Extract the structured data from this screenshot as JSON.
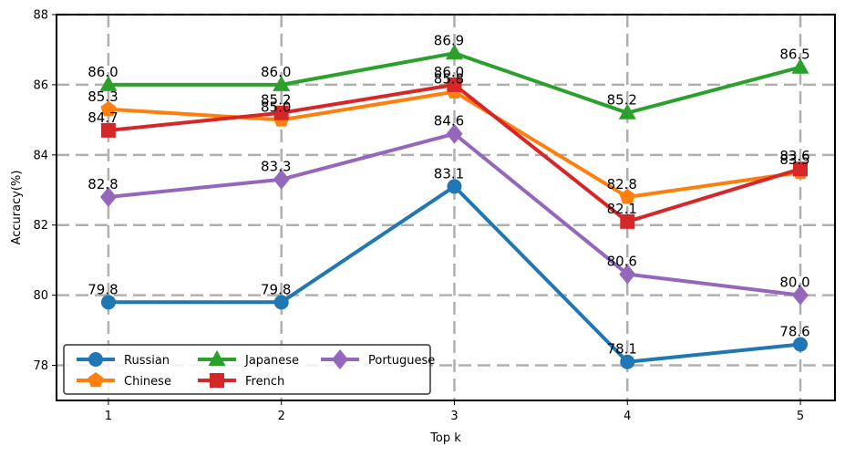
{
  "chart_data": {
    "type": "line",
    "xlabel": "Top k",
    "ylabel": "Accuracy(%)",
    "x": [
      1,
      2,
      3,
      4,
      5
    ],
    "x_tick_labels": [
      "1",
      "2",
      "3",
      "4",
      "5"
    ],
    "ylim": [
      77,
      88
    ],
    "y_ticks": [
      78,
      80,
      82,
      84,
      86,
      88
    ],
    "y_tick_labels": [
      "78",
      "80",
      "82",
      "84",
      "86",
      "88"
    ],
    "grid": true,
    "legend_position": "lower-left",
    "series": [
      {
        "name": "Russian",
        "color": "#1f77b4",
        "marker": "circle",
        "values": [
          79.8,
          79.8,
          83.1,
          78.1,
          78.6
        ],
        "labels": [
          "79.8",
          "79.8",
          "83.1",
          "78.1",
          "78.6"
        ]
      },
      {
        "name": "Chinese",
        "color": "#ff7f0e",
        "marker": "pentagon",
        "values": [
          85.3,
          85.0,
          85.8,
          82.8,
          83.5
        ],
        "labels": [
          "85.3",
          "85.0",
          "85.8",
          "82.8",
          "83.5"
        ]
      },
      {
        "name": "Japanese",
        "color": "#2ca02c",
        "marker": "triangle",
        "values": [
          86.0,
          86.0,
          86.9,
          85.2,
          86.5
        ],
        "labels": [
          "86.0",
          "86.0",
          "86.9",
          "85.2",
          "86.5"
        ]
      },
      {
        "name": "French",
        "color": "#d62728",
        "marker": "square",
        "values": [
          84.7,
          85.2,
          86.0,
          82.1,
          83.6
        ],
        "labels": [
          "84.7",
          "85.2",
          "86.0",
          "82.1",
          "83.6"
        ]
      },
      {
        "name": "Portuguese",
        "color": "#9467bd",
        "marker": "diamond",
        "values": [
          82.8,
          83.3,
          84.6,
          80.6,
          80.0
        ],
        "labels": [
          "82.8",
          "83.3",
          "84.6",
          "80.6",
          "80.0"
        ]
      }
    ]
  }
}
